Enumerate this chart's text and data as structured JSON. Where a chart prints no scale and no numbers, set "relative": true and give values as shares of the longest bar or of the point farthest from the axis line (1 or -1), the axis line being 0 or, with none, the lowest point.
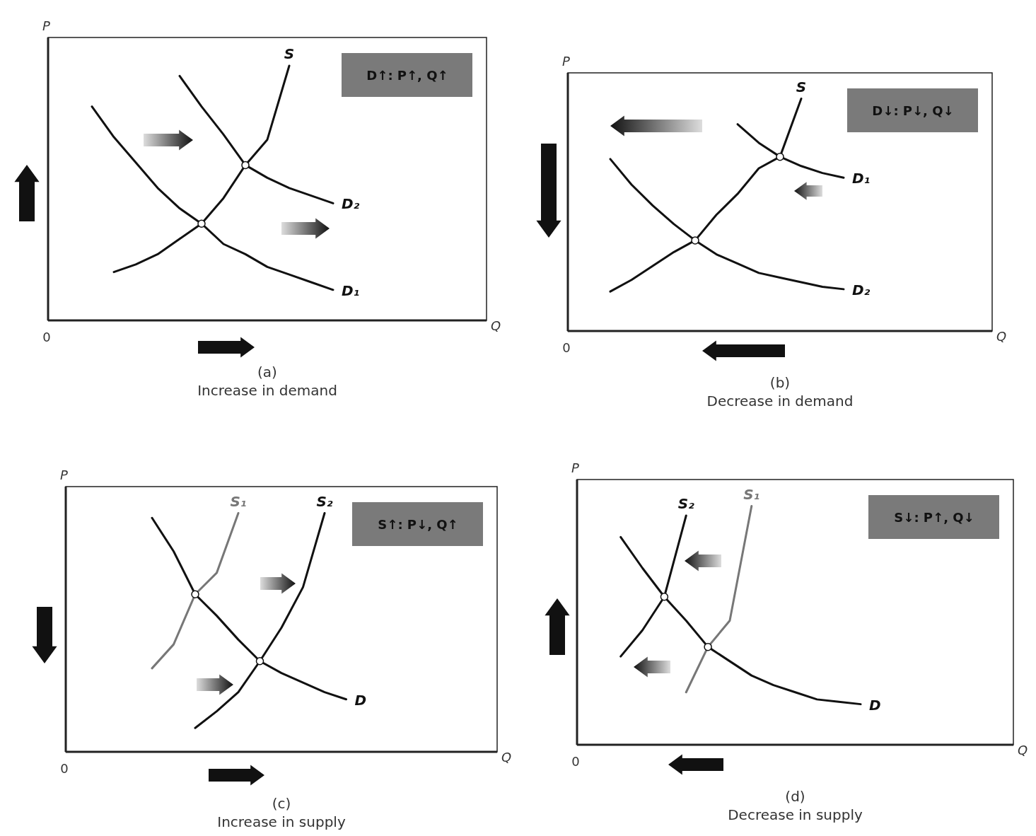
{
  "chart_data": [
    {
      "type": "line",
      "relative": true,
      "title": "(a)",
      "subtitle": "Increase in demand",
      "xlabel": "Q",
      "ylabel": "P",
      "legend": false,
      "annotations": [
        "0",
        "D↑: P↑, Q↑"
      ],
      "categories": [
        null,
        null,
        null,
        null,
        null,
        null,
        null,
        null,
        null,
        null,
        null,
        null,
        null,
        null,
        null,
        null,
        null,
        null,
        null,
        null,
        null
      ],
      "series": [
        {
          "name": "D₁",
          "color": "#111111",
          "values": [
            null,
            null,
            0.84,
            0.72,
            0.62,
            0.52,
            0.44,
            0.38,
            0.3,
            0.26,
            0.21,
            0.18,
            0.15,
            0.12,
            null,
            null,
            null,
            null,
            null,
            null,
            null
          ]
        },
        {
          "name": "D₂",
          "color": "#111111",
          "values": [
            null,
            null,
            null,
            null,
            null,
            null,
            0.96,
            0.84,
            0.73,
            0.61,
            0.56,
            0.52,
            0.49,
            0.46,
            null,
            null,
            null,
            null,
            null,
            null,
            null
          ]
        },
        {
          "name": "S",
          "color": "#111111",
          "values": [
            null,
            null,
            null,
            0.19,
            0.22,
            0.26,
            0.32,
            0.38,
            0.48,
            0.61,
            0.71,
            1,
            null,
            null,
            null,
            null,
            null,
            null,
            null,
            null,
            null
          ]
        }
      ]
    },
    {
      "type": "line",
      "relative": true,
      "title": "(b)",
      "subtitle": "Decrease in demand",
      "xlabel": "Q",
      "ylabel": "P",
      "legend": false,
      "annotations": [
        "0",
        "D↓: P↓, Q↓"
      ],
      "categories": [
        null,
        null,
        null,
        null,
        null,
        null,
        null,
        null,
        null,
        null,
        null,
        null,
        null,
        null,
        null,
        null,
        null,
        null,
        null,
        null,
        null
      ],
      "series": [
        {
          "name": "D₁",
          "color": "#111111",
          "values": [
            null,
            null,
            null,
            null,
            null,
            null,
            null,
            null,
            0.89,
            0.81,
            0.75,
            0.71,
            0.68,
            0.66,
            null,
            null,
            null,
            null,
            null,
            null,
            null
          ]
        },
        {
          "name": "D₂",
          "color": "#111111",
          "values": [
            null,
            null,
            0.74,
            0.63,
            0.54,
            0.46,
            0.39,
            0.33,
            0.29,
            0.25,
            0.23,
            0.21,
            0.19,
            0.18,
            null,
            null,
            null,
            null,
            null,
            null,
            null
          ]
        },
        {
          "name": "S",
          "color": "#111111",
          "values": [
            null,
            null,
            0.17,
            0.22,
            0.28,
            0.34,
            0.39,
            0.5,
            0.59,
            0.7,
            0.75,
            1,
            null,
            null,
            null,
            null,
            null,
            null,
            null,
            null,
            null
          ]
        }
      ]
    },
    {
      "type": "line",
      "relative": true,
      "title": "(c)",
      "subtitle": "Increase in supply",
      "xlabel": "Q",
      "ylabel": "P",
      "legend": false,
      "annotations": [
        "0",
        "S↑: P↓, Q↑"
      ],
      "categories": [
        null,
        null,
        null,
        null,
        null,
        null,
        null,
        null,
        null,
        null,
        null,
        null,
        null,
        null,
        null,
        null,
        null,
        null,
        null,
        null,
        null
      ],
      "series": [
        {
          "name": "D",
          "color": "#111111",
          "values": [
            null,
            null,
            null,
            null,
            0.98,
            0.84,
            0.66,
            0.57,
            0.47,
            0.38,
            0.33,
            0.29,
            0.25,
            0.22,
            null,
            null,
            null,
            null,
            null,
            null,
            null
          ]
        },
        {
          "name": "S₁",
          "color": "#777777",
          "values": [
            null,
            null,
            null,
            null,
            0.35,
            0.45,
            0.66,
            0.75,
            1,
            null,
            null,
            null,
            null,
            null,
            null,
            null,
            null,
            null,
            null,
            null,
            null
          ]
        },
        {
          "name": "S₂",
          "color": "#111111",
          "values": [
            null,
            null,
            null,
            null,
            null,
            null,
            0.1,
            0.17,
            0.25,
            0.38,
            0.52,
            0.69,
            1,
            null,
            null,
            null,
            null,
            null,
            null,
            null,
            null
          ]
        }
      ]
    },
    {
      "type": "line",
      "relative": true,
      "title": "(d)",
      "subtitle": "Decrease in supply",
      "xlabel": "Q",
      "ylabel": "P",
      "legend": false,
      "annotations": [
        "0",
        "S↓: P↑, Q↓"
      ],
      "categories": [
        null,
        null,
        null,
        null,
        null,
        null,
        null,
        null,
        null,
        null,
        null,
        null,
        null,
        null,
        null,
        null,
        null,
        null,
        null,
        null,
        null
      ],
      "series": [
        {
          "name": "D",
          "color": "#111111",
          "values": [
            null,
            null,
            0.87,
            0.74,
            0.62,
            0.52,
            0.41,
            0.35,
            0.29,
            0.25,
            0.22,
            0.19,
            0.18,
            0.17,
            null,
            null,
            null,
            null,
            null,
            null,
            null
          ]
        },
        {
          "name": "S₂",
          "color": "#111111",
          "values": [
            null,
            null,
            0.37,
            0.48,
            0.62,
            0.96,
            null,
            null,
            null,
            null,
            null,
            null,
            null,
            null,
            null,
            null,
            null,
            null,
            null,
            null,
            null
          ]
        },
        {
          "name": "S₁",
          "color": "#777777",
          "values": [
            null,
            null,
            null,
            null,
            null,
            0.22,
            0.41,
            0.52,
            1,
            null,
            null,
            null,
            null,
            null,
            null,
            null,
            null,
            null,
            null,
            null,
            null
          ]
        }
      ]
    }
  ]
}
